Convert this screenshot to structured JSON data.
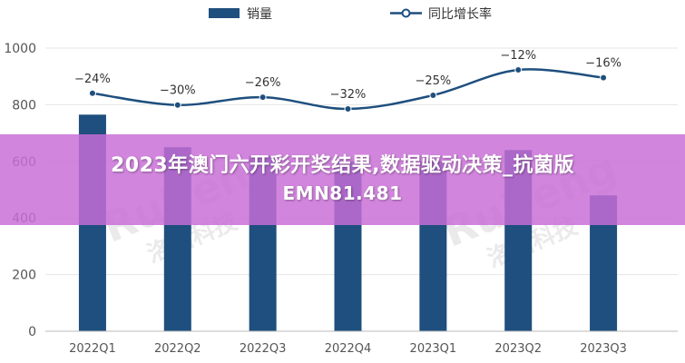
{
  "banner": {
    "line1": "2023年澳门六开彩开奖结果,数据驱动决策_抗菌版",
    "line2": "EMN81.481"
  },
  "watermark": {
    "text": "Ruifeng",
    "subtext": "洛图科技"
  },
  "colors": {
    "bar": "#1e4f7e",
    "line": "#1e4f7e",
    "grid": "#e4e4e4",
    "axis_text": "#555555",
    "banner": "#c86ed7"
  },
  "chart_data": {
    "type": "bar",
    "categories": [
      "2022Q1",
      "2022Q2",
      "2022Q3",
      "2022Q4",
      "2023Q1",
      "2023Q2",
      "2023Q3"
    ],
    "series": [
      {
        "name": "销量",
        "type": "bar",
        "values": [
          765,
          650,
          620,
          600,
          600,
          640,
          480
        ]
      },
      {
        "name": "同比增长率",
        "type": "line",
        "values": [
          -24,
          -30,
          -26,
          -32,
          -25,
          -12,
          -16
        ],
        "labels": [
          "−24%",
          "−30%",
          "−26%",
          "−32%",
          "−25%",
          "−12%",
          "−16%"
        ]
      }
    ],
    "yticks": [
      "0",
      "200",
      "400",
      "600",
      "800",
      "1000"
    ],
    "ylim": [
      0,
      1000
    ],
    "legend_position": "top-center",
    "grid": true
  }
}
